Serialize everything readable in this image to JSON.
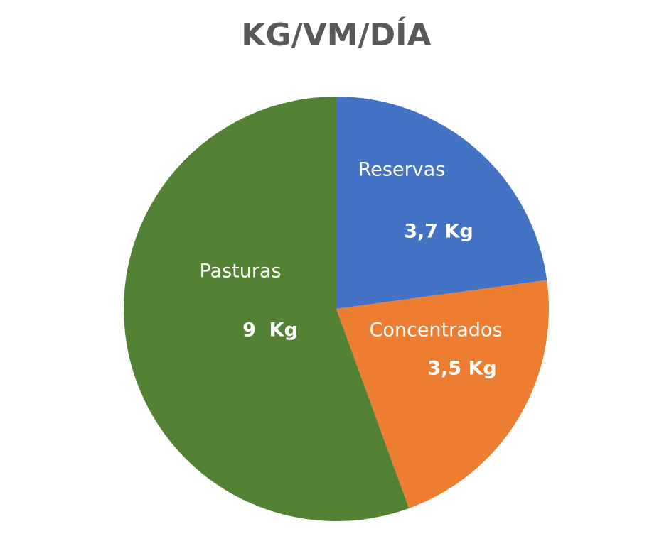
{
  "chart_data": {
    "type": "pie",
    "title": "KG/VM/DÍA",
    "categories": [
      "Reservas",
      "Concentrados",
      "Pasturas"
    ],
    "values": [
      3.7,
      3.5,
      9
    ],
    "value_labels": [
      "3,7 Kg",
      "3,5 Kg",
      "9  Kg"
    ],
    "colors": [
      "#4472c4",
      "#ed7d31",
      "#548235"
    ]
  }
}
